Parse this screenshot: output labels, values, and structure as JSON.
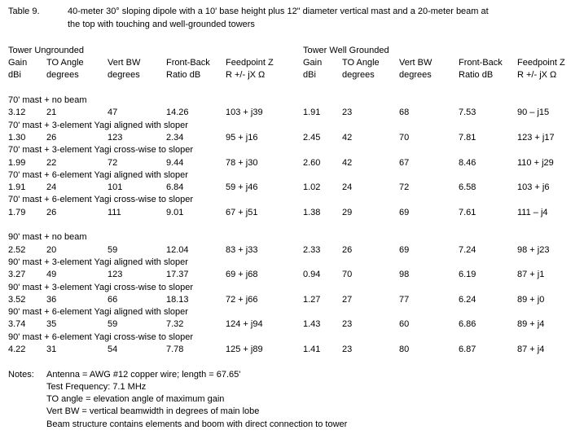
{
  "title": {
    "label": "Table 9.",
    "lines": [
      "40-meter 30° sloping dipole with a 10' base height plus 12\" diameter vertical mast and a 20-meter beam at",
      "the top with touching and well-grounded towers"
    ]
  },
  "table": {
    "groups": [
      {
        "title": "Tower Ungrounded"
      },
      {
        "title": "Tower Well Grounded"
      }
    ],
    "columns": [
      {
        "line1": "Gain",
        "line2": "dBi"
      },
      {
        "line1": "TO Angle",
        "line2": "degrees"
      },
      {
        "line1": "Vert BW",
        "line2": "degrees"
      },
      {
        "line1": "Front-Back",
        "line2": "Ratio dB"
      },
      {
        "line1": "Feedpoint Z",
        "line2": "R +/- jX Ω"
      }
    ],
    "sections": [
      {
        "label": "70' mast + no beam",
        "ungrounded": {
          "gain": "3.12",
          "to_angle": "21",
          "vert_bw": "47",
          "fb_ratio": "14.26",
          "feedpoint_z": "103 + j39"
        },
        "grounded": {
          "gain": "1.91",
          "to_angle": "23",
          "vert_bw": "68",
          "fb_ratio": "7.53",
          "feedpoint_z": "90 – j15"
        }
      },
      {
        "label": "70' mast + 3-element Yagi aligned with sloper",
        "ungrounded": {
          "gain": "1.30",
          "to_angle": "26",
          "vert_bw": "123",
          "fb_ratio": "2.34",
          "feedpoint_z": "95 + j16"
        },
        "grounded": {
          "gain": "2.45",
          "to_angle": "42",
          "vert_bw": "70",
          "fb_ratio": "7.81",
          "feedpoint_z": "123 + j17"
        }
      },
      {
        "label": "70' mast + 3-element Yagi cross-wise to sloper",
        "ungrounded": {
          "gain": "1.99",
          "to_angle": "22",
          "vert_bw": "72",
          "fb_ratio": "9.44",
          "feedpoint_z": "78 + j30"
        },
        "grounded": {
          "gain": "2.60",
          "to_angle": "42",
          "vert_bw": "67",
          "fb_ratio": "8.46",
          "feedpoint_z": "110 + j29"
        }
      },
      {
        "label": "70' mast + 6-element Yagi aligned with sloper",
        "ungrounded": {
          "gain": "1.91",
          "to_angle": "24",
          "vert_bw": "101",
          "fb_ratio": "6.84",
          "feedpoint_z": "59 + j46"
        },
        "grounded": {
          "gain": "1.02",
          "to_angle": "24",
          "vert_bw": "72",
          "fb_ratio": "6.58",
          "feedpoint_z": "103 + j6"
        }
      },
      {
        "label": "70' mast + 6-element Yagi cross-wise to sloper",
        "ungrounded": {
          "gain": "1.79",
          "to_angle": "26",
          "vert_bw": "111",
          "fb_ratio": "9.01",
          "feedpoint_z": "67 + j51"
        },
        "grounded": {
          "gain": "1.38",
          "to_angle": "29",
          "vert_bw": "69",
          "fb_ratio": "7.61",
          "feedpoint_z": "111 – j4"
        }
      },
      {
        "label": "90' mast + no beam",
        "ungrounded": {
          "gain": "2.52",
          "to_angle": "20",
          "vert_bw": "59",
          "fb_ratio": "12.04",
          "feedpoint_z": "83 + j33"
        },
        "grounded": {
          "gain": "2.33",
          "to_angle": "26",
          "vert_bw": "69",
          "fb_ratio": "7.24",
          "feedpoint_z": "98 + j23"
        }
      },
      {
        "label": "90' mast + 3-element Yagi aligned with sloper",
        "ungrounded": {
          "gain": "3.27",
          "to_angle": "49",
          "vert_bw": "123",
          "fb_ratio": "17.37",
          "feedpoint_z": "69 + j68"
        },
        "grounded": {
          "gain": "0.94",
          "to_angle": "70",
          "vert_bw": "98",
          "fb_ratio": "6.19",
          "feedpoint_z": "87 + j1"
        }
      },
      {
        "label": "90' mast + 3-element Yagi cross-wise to sloper",
        "ungrounded": {
          "gain": "3.52",
          "to_angle": "36",
          "vert_bw": "66",
          "fb_ratio": "18.13",
          "feedpoint_z": "72 + j66"
        },
        "grounded": {
          "gain": "1.27",
          "to_angle": "27",
          "vert_bw": "77",
          "fb_ratio": "6.24",
          "feedpoint_z": "89 + j0"
        }
      },
      {
        "label": "90' mast + 6-element Yagi aligned with sloper",
        "ungrounded": {
          "gain": "3.74",
          "to_angle": "35",
          "vert_bw": "59",
          "fb_ratio": "7.32",
          "feedpoint_z": "124 + j94"
        },
        "grounded": {
          "gain": "1.43",
          "to_angle": "23",
          "vert_bw": "60",
          "fb_ratio": "6.86",
          "feedpoint_z": "89 + j4"
        }
      },
      {
        "label": "90' mast + 6-element Yagi cross-wise to sloper",
        "ungrounded": {
          "gain": "4.22",
          "to_angle": "31",
          "vert_bw": "54",
          "fb_ratio": "7.78",
          "feedpoint_z": "125 + j89"
        },
        "grounded": {
          "gain": "1.41",
          "to_angle": "23",
          "vert_bw": "80",
          "fb_ratio": "6.87",
          "feedpoint_z": "87 + j4"
        }
      }
    ]
  },
  "notes": {
    "label": "Notes:",
    "lines": [
      "Antenna = AWG #12 copper wire; length = 67.65'",
      "Test Frequency: 7.1 MHz",
      "TO angle = elevation angle of maximum gain",
      "Vert BW = vertical beamwidth in degrees of main lobe",
      "Beam structure contains elements and boom with direct connection to tower"
    ]
  },
  "colors": {
    "text": "#000000",
    "background": "#ffffff"
  }
}
